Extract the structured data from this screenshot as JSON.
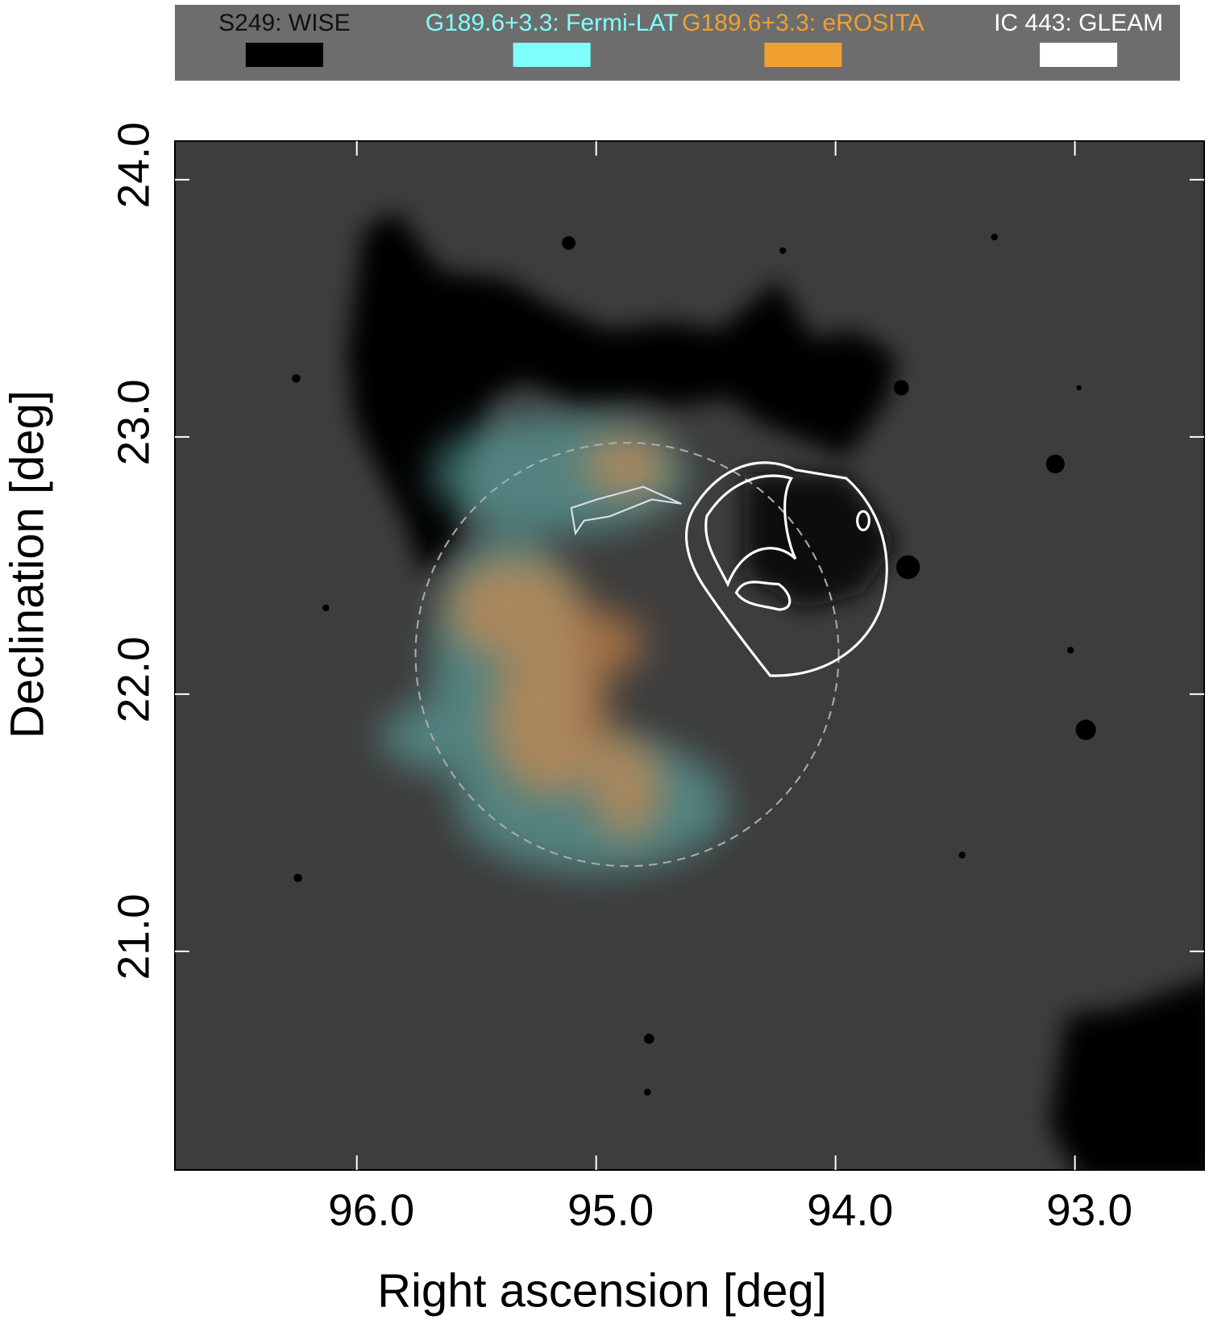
{
  "chart_data": {
    "type": "image",
    "x_label": "Right ascension [deg]",
    "y_label": "Declination [deg]",
    "xlim": [
      96.76,
      92.46
    ],
    "ylim": [
      20.15,
      24.15
    ],
    "xticks": [
      {
        "value": 96,
        "label": "96.0"
      },
      {
        "value": 95,
        "label": "95.0"
      },
      {
        "value": 94,
        "label": "94.0"
      },
      {
        "value": 93,
        "label": "93.0"
      }
    ],
    "yticks": [
      {
        "value": 21,
        "label": "21.0"
      },
      {
        "value": 22,
        "label": "22.0"
      },
      {
        "value": 23,
        "label": "23.0"
      },
      {
        "value": 24,
        "label": "24.0"
      }
    ],
    "legend": [
      {
        "name": "S249: WISE",
        "color": "#000000"
      },
      {
        "name": "G189.6+3.3: Fermi-LAT",
        "color": "#80ffff"
      },
      {
        "name": "G189.6+3.3: eROSITA",
        "color": "#f0a030"
      },
      {
        "name": "IC 443: GLEAM",
        "color": "#ffffff"
      }
    ]
  }
}
